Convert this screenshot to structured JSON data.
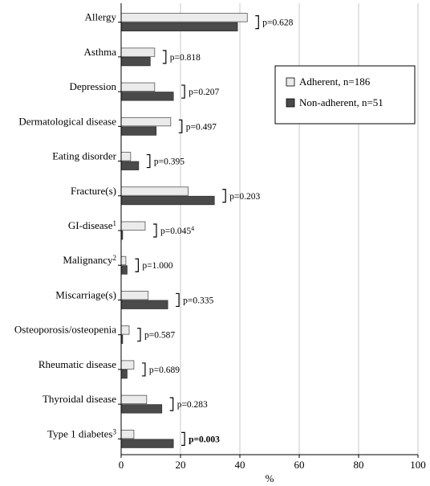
{
  "chart_data": {
    "type": "bar",
    "orientation": "horizontal",
    "xlabel": "%",
    "xlim": [
      0,
      100
    ],
    "xticks": [
      0,
      20,
      40,
      60,
      80,
      100
    ],
    "grid": true,
    "legend_position": "top-right",
    "categories": [
      {
        "label": "Allergy",
        "sup": ""
      },
      {
        "label": "Asthma",
        "sup": ""
      },
      {
        "label": "Depression",
        "sup": ""
      },
      {
        "label": "Dermatological disease",
        "sup": ""
      },
      {
        "label": "Eating disorder",
        "sup": ""
      },
      {
        "label": "Fracture(s)",
        "sup": ""
      },
      {
        "label": "GI-disease",
        "sup": "1"
      },
      {
        "label": "Malignancy",
        "sup": "2"
      },
      {
        "label": "Miscarriage(s)",
        "sup": ""
      },
      {
        "label": "Osteoporosis/osteopenia",
        "sup": ""
      },
      {
        "label": "Rheumatic disease",
        "sup": ""
      },
      {
        "label": "Thyroidal disease",
        "sup": ""
      },
      {
        "label": "Type 1 diabetes",
        "sup": "3"
      }
    ],
    "series": [
      {
        "name": "Adherent, n=186",
        "color": "#ebebeb",
        "values": [
          42.5,
          11.3,
          11.3,
          16.7,
          3.2,
          22.6,
          8.1,
          1.6,
          9.1,
          2.7,
          4.3,
          8.6,
          4.3
        ]
      },
      {
        "name": "Non-adherent, n=51",
        "color": "#4a4a4a",
        "values": [
          39.2,
          9.8,
          17.6,
          11.8,
          5.9,
          31.4,
          0.5,
          2.0,
          15.7,
          0.5,
          2.0,
          13.7,
          17.6
        ]
      }
    ],
    "p_values": [
      {
        "text": "p=0.628",
        "bold": false,
        "sup": ""
      },
      {
        "text": "p=0.818",
        "bold": false,
        "sup": ""
      },
      {
        "text": "p=0.207",
        "bold": false,
        "sup": ""
      },
      {
        "text": "p=0.497",
        "bold": false,
        "sup": ""
      },
      {
        "text": "p=0.395",
        "bold": false,
        "sup": ""
      },
      {
        "text": "p=0.203",
        "bold": false,
        "sup": ""
      },
      {
        "text": "p=0.045",
        "bold": false,
        "sup": "4"
      },
      {
        "text": "p=1.000",
        "bold": false,
        "sup": ""
      },
      {
        "text": "p=0.335",
        "bold": false,
        "sup": ""
      },
      {
        "text": "p=0.587",
        "bold": false,
        "sup": ""
      },
      {
        "text": "p=0.689",
        "bold": false,
        "sup": ""
      },
      {
        "text": "p=0.283",
        "bold": false,
        "sup": ""
      },
      {
        "text": "p=0.003",
        "bold": true,
        "sup": ""
      }
    ]
  }
}
